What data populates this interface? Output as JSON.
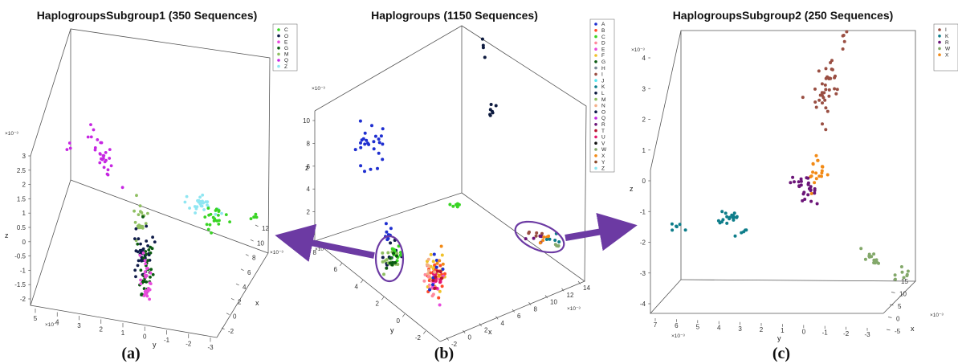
{
  "colors": {
    "A": "#1f2fd0",
    "B": "#ff4a2a",
    "C": "#39d424",
    "D": "#ff8a9e",
    "E": "#e84bdc",
    "F": "#f0c22a",
    "G": "#0b5a12",
    "H": "#7a8a96",
    "I": "#9a4f43",
    "J": "#54e6f0",
    "K": "#0e7d8a",
    "L": "#0d1a3f",
    "M": "#8fbf62",
    "N": "#f4b08a",
    "O": "#101c4a",
    "Q": "#c626e2",
    "R": "#6b1578",
    "T": "#b7122f",
    "U": "#e3166c",
    "V": "#111111",
    "W": "#83a86a",
    "X": "#f28a16",
    "Y": "#8c4c2e",
    "Z": "#8fe6f2",
    "arrow": "#6c3aa3"
  },
  "panels": [
    {
      "title": "HaplogroupsSubgroup1 (350 Sequences)",
      "caption": "(a)",
      "legend": [
        "C",
        "O",
        "E",
        "G",
        "M",
        "Q",
        "Z"
      ],
      "z_ticks": [
        "3",
        "2.5",
        "2",
        "1.5",
        "1",
        "0.5",
        "0",
        "-0.5",
        "-1",
        "-1.5",
        "-2"
      ],
      "z_label": "z",
      "z_mult": "×10⁻³",
      "y_ticks": [
        "5",
        "4",
        "3",
        "2",
        "1",
        "0",
        "-1",
        "-2",
        "-3"
      ],
      "y_label": "y",
      "y_mult": "×10⁻³",
      "x_ticks": [
        "12",
        "10",
        "8",
        "6",
        "4",
        "2",
        "0",
        "-2"
      ],
      "x_label": "x",
      "x_mult": "×10⁻³"
    },
    {
      "title": "Haplogroups (1150 Sequences)",
      "caption": "(b)",
      "legend": [
        "A",
        "B",
        "C",
        "D",
        "E",
        "F",
        "G",
        "H",
        "I",
        "J",
        "K",
        "L",
        "M",
        "N",
        "O",
        "Q",
        "R",
        "T",
        "U",
        "V",
        "W",
        "X",
        "Y",
        "Z"
      ],
      "z_ticks": [
        "10",
        "8",
        "6",
        "4",
        "2",
        "0"
      ],
      "z_label": "z",
      "z_mult": "×10⁻³",
      "y_ticks": [
        "8",
        "6",
        "4",
        "2",
        "0",
        "-2"
      ],
      "y_label": "y",
      "y_mult": "×10⁻³",
      "x_ticks": [
        "-2",
        "0",
        "2",
        "4",
        "6",
        "8",
        "10",
        "12",
        "14"
      ],
      "x_label": "x",
      "x_mult": "×10⁻³"
    },
    {
      "title": "HaplogroupsSubgroup2 (250 Sequences)",
      "caption": "(c)",
      "legend": [
        "I",
        "K",
        "R",
        "W",
        "X"
      ],
      "z_ticks": [
        "4",
        "3",
        "2",
        "1",
        "0",
        "-1",
        "-2",
        "-3",
        "-4"
      ],
      "z_label": "z",
      "z_mult": "×10⁻³",
      "y_ticks": [
        "7",
        "6",
        "5",
        "4",
        "3",
        "2",
        "1",
        "0",
        "-1",
        "-2",
        "-3"
      ],
      "y_label": "y",
      "y_mult": "×10⁻³",
      "x_ticks": [
        "15",
        "10",
        "5",
        "0",
        "-5"
      ],
      "x_label": "x",
      "x_mult": "×10⁻³"
    }
  ],
  "chart_data": [
    {
      "type": "scatter",
      "title": "HaplogroupsSubgroup1 (350 Sequences)",
      "xlabel": "x",
      "ylabel": "y",
      "zlabel": "z",
      "zlim": [
        -2,
        3
      ],
      "series": [
        {
          "name": "C",
          "approx_center": {
            "x": 10,
            "y": -2,
            "z": 0.5
          }
        },
        {
          "name": "O",
          "approx_center": {
            "x": 0,
            "y": 0,
            "z": -0.4
          }
        },
        {
          "name": "E",
          "approx_center": {
            "x": 0,
            "y": 0,
            "z": -1.3
          }
        },
        {
          "name": "G",
          "approx_center": {
            "x": 0,
            "y": 0,
            "z": -1
          }
        },
        {
          "name": "M",
          "approx_center": {
            "x": 0,
            "y": 0,
            "z": 0.3
          }
        },
        {
          "name": "Q",
          "approx_center": {
            "x": -1,
            "y": 3,
            "z": 2.4
          }
        },
        {
          "name": "Z",
          "approx_center": {
            "x": 9,
            "y": -1,
            "z": 1.2
          }
        }
      ]
    },
    {
      "type": "scatter",
      "title": "Haplogroups (1150 Sequences)",
      "xlabel": "x",
      "ylabel": "y",
      "zlabel": "z",
      "zlim": [
        0,
        10
      ],
      "series": [
        {
          "name": "A",
          "approx_center": {
            "x": -1,
            "y": 7,
            "z": 6
          }
        },
        {
          "name": "L",
          "approx_center": {
            "x": 12,
            "y": 4,
            "z": 10
          }
        },
        {
          "name": "C",
          "approx_center": {
            "x": 5,
            "y": 2,
            "z": 2
          }
        },
        {
          "name": "I",
          "approx_center": {
            "x": 12,
            "y": -1,
            "z": 1
          }
        },
        {
          "name": "K",
          "approx_center": {
            "x": 12,
            "y": -1,
            "z": 0.8
          }
        },
        {
          "name": "R",
          "approx_center": {
            "x": 12,
            "y": -1,
            "z": 1
          }
        },
        {
          "name": "X",
          "approx_center": {
            "x": 12,
            "y": -1,
            "z": 0.9
          }
        },
        {
          "name": "W",
          "approx_center": {
            "x": 12,
            "y": -1,
            "z": 0.9
          }
        },
        {
          "name": "B",
          "approx_center": {
            "x": 6,
            "y": 0,
            "z": 0.5
          }
        },
        {
          "name": "F",
          "approx_center": {
            "x": 6,
            "y": 0,
            "z": 0.5
          }
        },
        {
          "name": "D",
          "approx_center": {
            "x": 6,
            "y": 0,
            "z": 0.5
          }
        }
      ]
    },
    {
      "type": "scatter",
      "title": "HaplogroupsSubgroup2 (250 Sequences)",
      "xlabel": "x",
      "ylabel": "y",
      "zlabel": "z",
      "zlim": [
        -4,
        4
      ],
      "series": [
        {
          "name": "I",
          "approx_center": {
            "x": 5,
            "y": -1,
            "z": 3.5
          }
        },
        {
          "name": "K",
          "approx_center": {
            "x": 5,
            "y": 5,
            "z": -0.8
          }
        },
        {
          "name": "R",
          "approx_center": {
            "x": 5,
            "y": 0,
            "z": 0.2
          }
        },
        {
          "name": "W",
          "approx_center": {
            "x": 5,
            "y": -3,
            "z": -2.5
          }
        },
        {
          "name": "X",
          "approx_center": {
            "x": 5,
            "y": -0.8,
            "z": 0.8
          }
        }
      ]
    }
  ]
}
